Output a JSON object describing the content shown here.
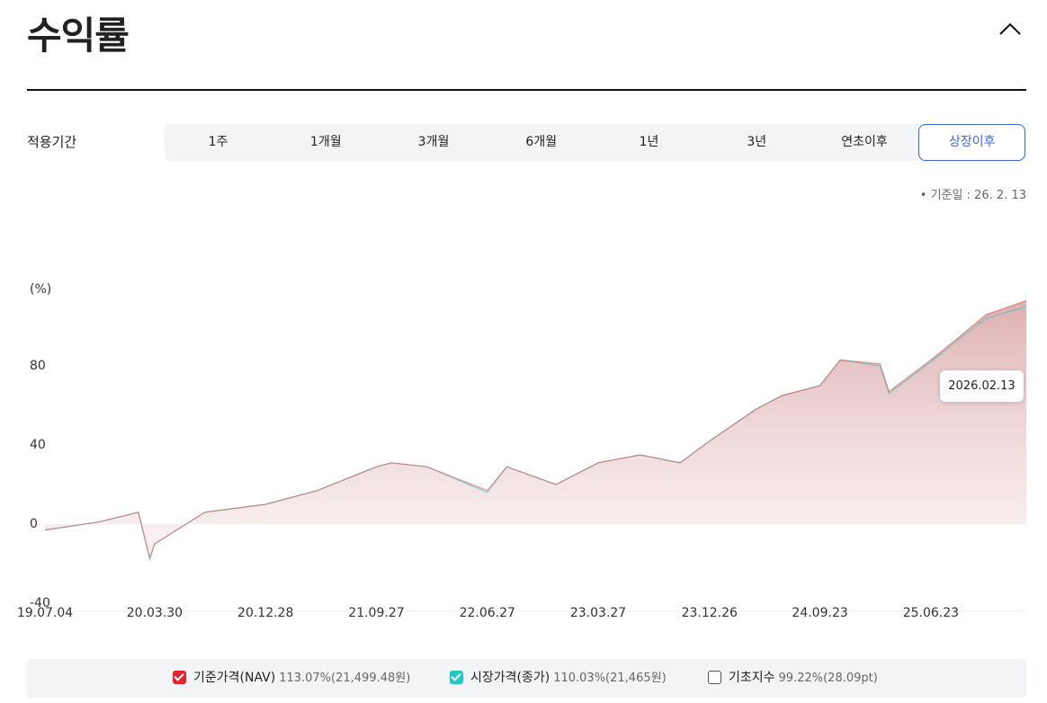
{
  "header": {
    "title": "수익률"
  },
  "period": {
    "label": "적용기간",
    "options": [
      "1주",
      "1개월",
      "3개월",
      "6개월",
      "1년",
      "3년",
      "연초이후",
      "상장이후"
    ],
    "selected_index": 7
  },
  "base_date": "기준일 : 26. 2. 13",
  "chart_data": {
    "type": "area",
    "y_label": "(%)",
    "tooltip": "2026.02.13",
    "x": [
      "19.07.04",
      "19.11.12",
      "20.02.19",
      "20.03.18",
      "20.03.30",
      "20.08.01",
      "20.12.28",
      "21.05.05",
      "21.09.27",
      "21.11.03",
      "22.01.29",
      "22.06.27",
      "22.08.14",
      "22.12.13",
      "23.03.27",
      "23.07.08",
      "23.10.15",
      "23.12.26",
      "24.04.18",
      "24.06.22",
      "24.09.23",
      "24.11.12",
      "25.02.18",
      "25.03.12",
      "25.06.23",
      "25.09.03",
      "25.11.07",
      "26.02.13"
    ],
    "xlim": [
      "19.07.04",
      "26.02.13"
    ],
    "xticks": [
      "19.07.04",
      "20.03.30",
      "20.12.28",
      "21.09.27",
      "22.06.27",
      "23.03.27",
      "23.12.26",
      "24.09.23",
      "25.06.23"
    ],
    "ylim": [
      -40,
      120
    ],
    "yticks": [
      -40,
      0,
      40,
      80
    ],
    "series": [
      {
        "name": "시장가격(종가)",
        "color": "#2ec7c9",
        "values": [
          -3,
          1,
          6,
          -18,
          -10,
          6,
          10,
          17,
          29,
          31,
          29,
          16,
          29,
          20,
          31,
          35,
          31,
          42,
          58,
          65,
          70,
          83,
          80,
          66,
          82,
          94,
          104,
          110
        ]
      },
      {
        "name": "기준가격(NAV)",
        "color": "#e8403f",
        "values": [
          -3,
          1,
          6,
          -17,
          -10,
          6,
          10,
          17,
          29,
          31,
          29,
          17,
          29,
          20,
          31,
          35,
          31,
          42,
          58,
          65,
          70,
          83,
          81,
          67,
          83,
          95,
          106,
          113
        ]
      }
    ]
  },
  "legend": {
    "value_labels": [
      "110.03%(21,465원)",
      "113.07%(21,499.48원)"
    ],
    "unchecked": {
      "name": "기초지수",
      "value_label": "99.22%(28.09pt)"
    }
  }
}
